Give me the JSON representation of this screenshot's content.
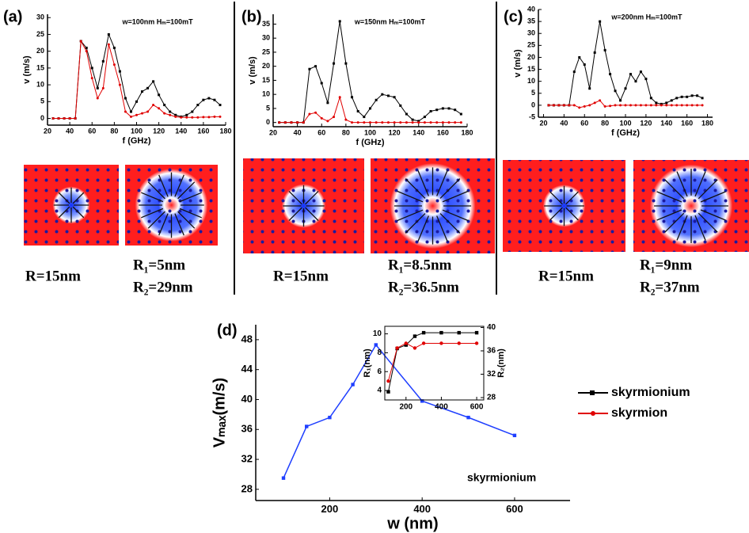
{
  "chart_data": [
    {
      "panel": "(a)",
      "type": "line",
      "title": "w=100nm Hₘ=100mT",
      "xlabel": "f (GHz)",
      "ylabel": "v (m/s)",
      "x": [
        25,
        30,
        35,
        40,
        45,
        50,
        55,
        60,
        65,
        70,
        75,
        80,
        85,
        90,
        95,
        100,
        105,
        110,
        115,
        120,
        125,
        130,
        135,
        140,
        145,
        150,
        155,
        160,
        165,
        170,
        175
      ],
      "xlim": [
        20,
        180
      ],
      "xticks": [
        20,
        40,
        60,
        80,
        100,
        120,
        140,
        160,
        180
      ],
      "ylim": [
        -2,
        31
      ],
      "yticks": [
        0,
        5,
        10,
        15,
        20,
        25,
        30
      ],
      "series": [
        {
          "color": "#000000",
          "values": [
            0,
            0,
            0,
            0,
            0,
            23,
            21,
            15,
            9,
            17,
            25,
            21,
            14,
            6,
            2,
            5,
            8,
            9,
            11,
            7,
            4,
            2,
            1,
            0.5,
            1,
            2,
            4,
            5.5,
            6,
            5.5,
            4
          ]
        },
        {
          "color": "#e00000",
          "values": [
            0,
            0,
            0,
            0,
            0,
            23,
            20,
            12,
            6,
            9,
            22,
            16,
            10,
            2,
            0.5,
            1,
            1.5,
            2,
            4,
            3,
            1.5,
            1,
            0.5,
            0.3,
            0.3,
            0.3,
            0.3,
            0.4,
            0.4,
            0.5,
            0.5
          ]
        }
      ],
      "image_labels": [
        "R=15nm",
        "R₁=5nm",
        "R₂=29nm"
      ]
    },
    {
      "panel": "(b)",
      "type": "line",
      "title": "w=150nm Hₘ=100mT",
      "xlabel": "f (GHz)",
      "ylabel": "v (m/s)",
      "x": [
        25,
        30,
        35,
        40,
        45,
        50,
        55,
        60,
        65,
        70,
        75,
        80,
        85,
        90,
        95,
        100,
        105,
        110,
        115,
        120,
        125,
        130,
        135,
        140,
        145,
        150,
        155,
        160,
        165,
        170,
        175
      ],
      "xlim": [
        20,
        180
      ],
      "xticks": [
        20,
        40,
        60,
        80,
        100,
        120,
        140,
        160,
        180
      ],
      "ylim": [
        -1.5,
        38.5
      ],
      "yticks": [
        0,
        5,
        10,
        15,
        20,
        25,
        30,
        35
      ],
      "series": [
        {
          "color": "#000000",
          "values": [
            0,
            0,
            0,
            0,
            0,
            19,
            20,
            14,
            7,
            21,
            36,
            21,
            9,
            4,
            2,
            5,
            8,
            10,
            9.5,
            9,
            6,
            3,
            1,
            0.5,
            2,
            4,
            4.5,
            5,
            5,
            4.5,
            3
          ]
        },
        {
          "color": "#e00000",
          "values": [
            0,
            0,
            0,
            0,
            0,
            3,
            3.5,
            1.5,
            0.5,
            2,
            9,
            1,
            0,
            0,
            0,
            0,
            0,
            0,
            0,
            0,
            0,
            0,
            0,
            0,
            0,
            0,
            0,
            0,
            0,
            0,
            0
          ]
        }
      ],
      "image_labels": [
        "R=15nm",
        "R₁=8.5nm",
        "R₂=36.5nm"
      ]
    },
    {
      "panel": "(c)",
      "type": "line",
      "title": "w=200nm Hₘ=100mT",
      "xlabel": "f (GHz)",
      "ylabel": "v (m/s)",
      "x": [
        25,
        30,
        35,
        40,
        45,
        50,
        55,
        60,
        65,
        70,
        75,
        80,
        85,
        90,
        95,
        100,
        105,
        110,
        115,
        120,
        125,
        130,
        135,
        140,
        145,
        150,
        155,
        160,
        165,
        170,
        175
      ],
      "xlim": [
        15,
        185
      ],
      "xticks": [
        20,
        40,
        60,
        80,
        100,
        120,
        140,
        160,
        180
      ],
      "ylim": [
        -5,
        40
      ],
      "yticks": [
        -5,
        0,
        5,
        10,
        15,
        20,
        25,
        30,
        35,
        40
      ],
      "series": [
        {
          "color": "#000000",
          "values": [
            0,
            0,
            0,
            0,
            0,
            14,
            20,
            17,
            7,
            22,
            35,
            23,
            13,
            6,
            2,
            7,
            13,
            10,
            14,
            11,
            3,
            1,
            0.5,
            1,
            2,
            3,
            3.5,
            3.5,
            4,
            4,
            3
          ]
        },
        {
          "color": "#e00000",
          "values": [
            0,
            0,
            0,
            0,
            0,
            0,
            -1,
            -0.5,
            0,
            1,
            2,
            -0.5,
            -0.3,
            0,
            0,
            0,
            0,
            0,
            0,
            0,
            0,
            0,
            0,
            0,
            0,
            0,
            0,
            0,
            0,
            0,
            0
          ]
        }
      ],
      "image_labels": [
        "R=15nm",
        "R₁=9nm",
        "R₂=37nm"
      ]
    },
    {
      "panel": "(d)",
      "type": "line",
      "xlabel": "w (nm)",
      "ylabel": "Vₘₐₓ(m/s)",
      "annotation": "skyrmionium",
      "x": [
        100,
        150,
        200,
        250,
        300,
        400,
        500,
        600
      ],
      "xlim": [
        40,
        720
      ],
      "xticks": [
        200,
        400,
        600
      ],
      "ylim": [
        26.5,
        50
      ],
      "yticks": [
        28,
        32,
        36,
        40,
        44,
        48
      ],
      "series": [
        {
          "color": "#1f3fff",
          "values": [
            29.5,
            36.4,
            37.6,
            42,
            47.3,
            39.8,
            37.6,
            35.2
          ]
        }
      ]
    },
    {
      "type": "line",
      "ylabel": "R₁(nm)",
      "y2label": "R₂(nm)",
      "x": [
        100,
        150,
        200,
        250,
        300,
        400,
        500,
        600
      ],
      "xlim": [
        80,
        640
      ],
      "xticks": [
        200,
        400,
        600
      ],
      "ylim": [
        3,
        10.8
      ],
      "yticks": [
        4,
        6,
        8,
        10
      ],
      "y2lim": [
        27.6,
        40.2
      ],
      "y2ticks": [
        28,
        32,
        36,
        40
      ],
      "series": [
        {
          "name": "skyrmionium",
          "color": "#000000",
          "axis": "y2",
          "values": [
            29,
            36.4,
            37,
            38.5,
            39.1,
            39.1,
            39.1,
            39.1
          ]
        },
        {
          "name": "skyrmion",
          "color": "#e00000",
          "values": [
            5,
            8.5,
            9,
            8.5,
            9,
            9,
            9,
            9
          ]
        }
      ]
    }
  ]
}
